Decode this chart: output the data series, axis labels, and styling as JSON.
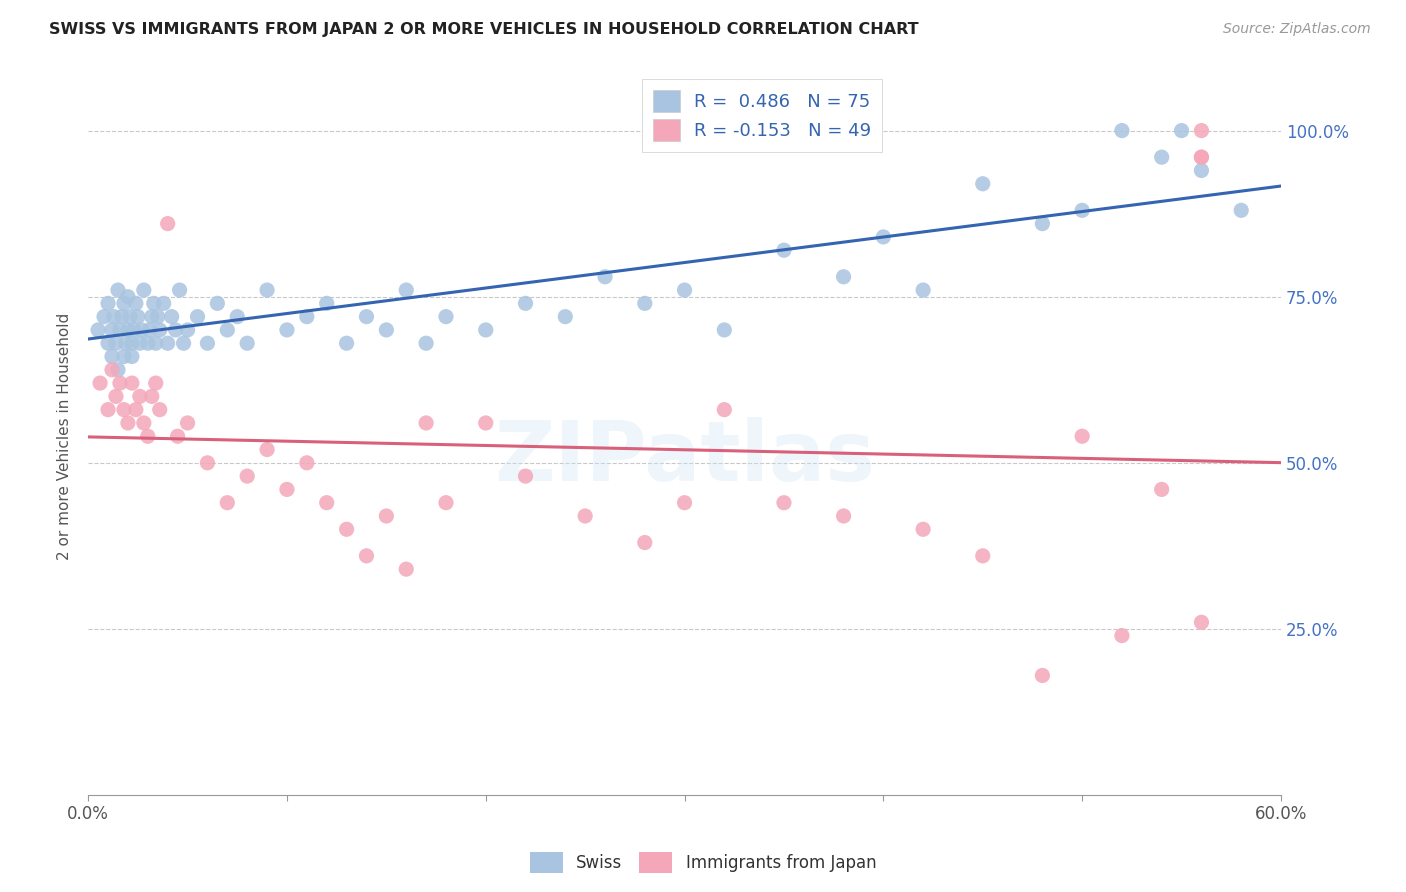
{
  "title": "SWISS VS IMMIGRANTS FROM JAPAN 2 OR MORE VEHICLES IN HOUSEHOLD CORRELATION CHART",
  "source": "Source: ZipAtlas.com",
  "ylabel": "2 or more Vehicles in Household",
  "xmin": 0.0,
  "xmax": 0.6,
  "ymin": 0.0,
  "ymax": 1.08,
  "ytick_positions": [
    0.25,
    0.5,
    0.75,
    1.0
  ],
  "ytick_labels": [
    "25.0%",
    "50.0%",
    "75.0%",
    "100.0%"
  ],
  "xtick_positions": [
    0.0,
    0.1,
    0.2,
    0.3,
    0.4,
    0.5,
    0.6
  ],
  "xtick_labels": [
    "0.0%",
    "",
    "",
    "",
    "",
    "",
    "60.0%"
  ],
  "swiss_R": 0.486,
  "swiss_N": 75,
  "japan_R": -0.153,
  "japan_N": 49,
  "swiss_color": "#a8c4e0",
  "japan_color": "#f4a7b9",
  "swiss_line_color": "#3565b0",
  "japan_line_color": "#d9607a",
  "legend_label_swiss": "Swiss",
  "legend_label_japan": "Immigrants from Japan",
  "swiss_x": [
    0.005,
    0.008,
    0.01,
    0.01,
    0.012,
    0.012,
    0.013,
    0.014,
    0.015,
    0.015,
    0.016,
    0.017,
    0.018,
    0.018,
    0.019,
    0.02,
    0.02,
    0.021,
    0.022,
    0.022,
    0.023,
    0.024,
    0.025,
    0.026,
    0.027,
    0.028,
    0.03,
    0.031,
    0.032,
    0.033,
    0.034,
    0.035,
    0.036,
    0.038,
    0.04,
    0.042,
    0.044,
    0.046,
    0.048,
    0.05,
    0.055,
    0.06,
    0.065,
    0.07,
    0.075,
    0.08,
    0.09,
    0.1,
    0.11,
    0.12,
    0.13,
    0.14,
    0.15,
    0.16,
    0.17,
    0.18,
    0.2,
    0.22,
    0.24,
    0.26,
    0.28,
    0.3,
    0.32,
    0.35,
    0.38,
    0.4,
    0.42,
    0.45,
    0.48,
    0.5,
    0.52,
    0.54,
    0.55,
    0.56,
    0.58
  ],
  "swiss_y": [
    0.7,
    0.72,
    0.68,
    0.74,
    0.66,
    0.7,
    0.72,
    0.68,
    0.64,
    0.76,
    0.7,
    0.72,
    0.66,
    0.74,
    0.68,
    0.7,
    0.75,
    0.72,
    0.68,
    0.66,
    0.7,
    0.74,
    0.72,
    0.68,
    0.7,
    0.76,
    0.68,
    0.7,
    0.72,
    0.74,
    0.68,
    0.72,
    0.7,
    0.74,
    0.68,
    0.72,
    0.7,
    0.76,
    0.68,
    0.7,
    0.72,
    0.68,
    0.74,
    0.7,
    0.72,
    0.68,
    0.76,
    0.7,
    0.72,
    0.74,
    0.68,
    0.72,
    0.7,
    0.76,
    0.68,
    0.72,
    0.7,
    0.74,
    0.72,
    0.78,
    0.74,
    0.76,
    0.7,
    0.82,
    0.78,
    0.84,
    0.76,
    0.92,
    0.86,
    0.88,
    1.0,
    0.96,
    1.0,
    0.94,
    0.88
  ],
  "japan_x": [
    0.006,
    0.01,
    0.012,
    0.014,
    0.016,
    0.018,
    0.02,
    0.022,
    0.024,
    0.026,
    0.028,
    0.03,
    0.032,
    0.034,
    0.036,
    0.04,
    0.045,
    0.05,
    0.06,
    0.07,
    0.08,
    0.09,
    0.1,
    0.11,
    0.12,
    0.13,
    0.14,
    0.15,
    0.16,
    0.17,
    0.18,
    0.2,
    0.22,
    0.25,
    0.28,
    0.3,
    0.32,
    0.35,
    0.38,
    0.42,
    0.45,
    0.48,
    0.5,
    0.52,
    0.54,
    0.56,
    0.56,
    0.56,
    0.56
  ],
  "japan_y": [
    0.62,
    0.58,
    0.64,
    0.6,
    0.62,
    0.58,
    0.56,
    0.62,
    0.58,
    0.6,
    0.56,
    0.54,
    0.6,
    0.62,
    0.58,
    0.86,
    0.54,
    0.56,
    0.5,
    0.44,
    0.48,
    0.52,
    0.46,
    0.5,
    0.44,
    0.4,
    0.36,
    0.42,
    0.34,
    0.56,
    0.44,
    0.56,
    0.48,
    0.42,
    0.38,
    0.44,
    0.58,
    0.44,
    0.42,
    0.4,
    0.36,
    0.18,
    0.54,
    0.24,
    0.46,
    0.26,
    1.0,
    0.96,
    0.96
  ]
}
